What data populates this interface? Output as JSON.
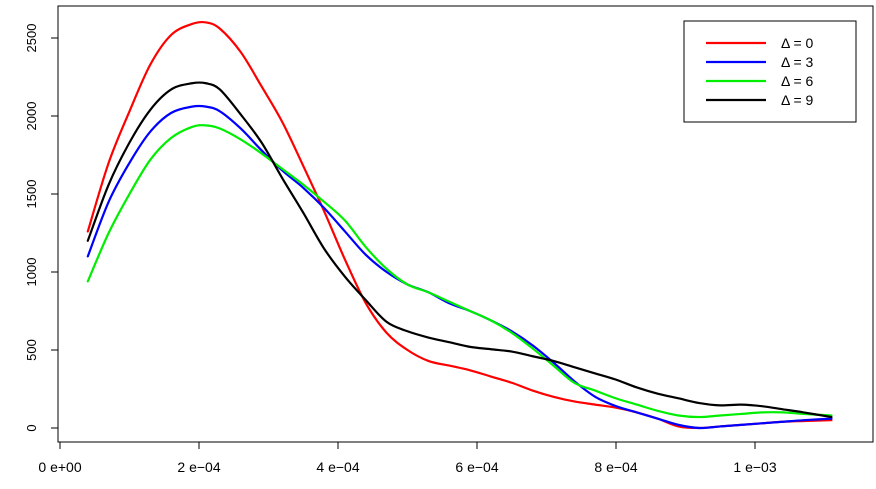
{
  "chart_data": {
    "type": "line",
    "title": "",
    "xlabel": "",
    "ylabel": "",
    "xlim": [
      0,
      0.00117
    ],
    "ylim": [
      0,
      2600
    ],
    "x_ticks": [
      {
        "value": 0,
        "label": "0  e+00"
      },
      {
        "value": 0.0002,
        "label": "2  e−04"
      },
      {
        "value": 0.0004,
        "label": "4  e−04"
      },
      {
        "value": 0.0006,
        "label": "6  e−04"
      },
      {
        "value": 0.0008,
        "label": "8  e−04"
      },
      {
        "value": 0.001,
        "label": "1  e−03"
      }
    ],
    "y_ticks": [
      {
        "value": 0,
        "label": "0"
      },
      {
        "value": 500,
        "label": "500"
      },
      {
        "value": 1000,
        "label": "1000"
      },
      {
        "value": 1500,
        "label": "1500"
      },
      {
        "value": 2000,
        "label": "2000"
      },
      {
        "value": 2500,
        "label": "2500"
      }
    ],
    "legend_position": "top-right",
    "series": [
      {
        "name": "Δ = 0",
        "color": "#ff0000",
        "x": [
          4e-05,
          7e-05,
          0.0001,
          0.00013,
          0.00016,
          0.00019,
          0.00021,
          0.00023,
          0.00026,
          0.00029,
          0.00032,
          0.00035,
          0.00038,
          0.00041,
          0.00044,
          0.00047,
          0.0005,
          0.00053,
          0.00056,
          0.00059,
          0.00062,
          0.00065,
          0.00068,
          0.00071,
          0.00074,
          0.00077,
          0.0008,
          0.00083,
          0.00086,
          0.00089,
          0.00092,
          0.00095,
          0.00098,
          0.00101,
          0.00104,
          0.00107,
          0.00111
        ],
        "y": [
          1260,
          1700,
          2030,
          2330,
          2520,
          2590,
          2600,
          2560,
          2410,
          2190,
          1960,
          1680,
          1390,
          1080,
          800,
          610,
          500,
          430,
          400,
          370,
          330,
          290,
          240,
          200,
          170,
          150,
          130,
          100,
          60,
          10,
          0,
          10,
          20,
          30,
          40,
          45,
          50
        ]
      },
      {
        "name": "Δ = 3",
        "color": "#0000ff",
        "x": [
          4e-05,
          7e-05,
          0.0001,
          0.00013,
          0.00016,
          0.00019,
          0.00021,
          0.00023,
          0.00026,
          0.00029,
          0.00032,
          0.00035,
          0.00038,
          0.00041,
          0.00044,
          0.00047,
          0.0005,
          0.00053,
          0.00056,
          0.00059,
          0.00062,
          0.00065,
          0.00068,
          0.00071,
          0.00074,
          0.00077,
          0.0008,
          0.00083,
          0.00086,
          0.00089,
          0.00092,
          0.00095,
          0.00098,
          0.00101,
          0.00104,
          0.00107,
          0.00111
        ],
        "y": [
          1100,
          1450,
          1700,
          1900,
          2020,
          2060,
          2060,
          2030,
          1920,
          1780,
          1650,
          1540,
          1410,
          1260,
          1110,
          1000,
          920,
          870,
          800,
          750,
          690,
          620,
          530,
          420,
          300,
          200,
          140,
          100,
          60,
          20,
          0,
          10,
          20,
          30,
          40,
          50,
          60
        ]
      },
      {
        "name": "Δ = 6",
        "color": "#00ee00",
        "x": [
          4e-05,
          7e-05,
          0.0001,
          0.00013,
          0.00016,
          0.00019,
          0.00021,
          0.00023,
          0.00026,
          0.00029,
          0.00032,
          0.00035,
          0.00038,
          0.00041,
          0.00044,
          0.00047,
          0.0005,
          0.00053,
          0.00056,
          0.00059,
          0.00062,
          0.00065,
          0.00068,
          0.00071,
          0.00074,
          0.00077,
          0.0008,
          0.00083,
          0.00086,
          0.00089,
          0.00092,
          0.00095,
          0.00098,
          0.00101,
          0.00104,
          0.00107,
          0.00111
        ],
        "y": [
          940,
          1250,
          1500,
          1720,
          1860,
          1930,
          1940,
          1920,
          1850,
          1760,
          1660,
          1560,
          1450,
          1330,
          1160,
          1020,
          920,
          870,
          810,
          750,
          690,
          610,
          510,
          400,
          290,
          240,
          190,
          150,
          110,
          80,
          70,
          80,
          90,
          100,
          100,
          90,
          80
        ]
      },
      {
        "name": "Δ = 9",
        "color": "#000000",
        "x": [
          4e-05,
          7e-05,
          0.0001,
          0.00013,
          0.00016,
          0.00019,
          0.00021,
          0.00023,
          0.00026,
          0.00029,
          0.00032,
          0.00035,
          0.00038,
          0.00041,
          0.00044,
          0.00047,
          0.0005,
          0.00053,
          0.00056,
          0.00059,
          0.00062,
          0.00065,
          0.00068,
          0.00071,
          0.00074,
          0.00077,
          0.0008,
          0.00083,
          0.00086,
          0.00089,
          0.00092,
          0.00095,
          0.00098,
          0.00101,
          0.00104,
          0.00107,
          0.00111
        ],
        "y": [
          1200,
          1560,
          1830,
          2040,
          2170,
          2210,
          2210,
          2170,
          2010,
          1830,
          1600,
          1380,
          1150,
          970,
          820,
          680,
          620,
          580,
          550,
          520,
          505,
          490,
          460,
          430,
          390,
          350,
          310,
          260,
          220,
          190,
          160,
          145,
          150,
          140,
          120,
          100,
          70
        ]
      }
    ]
  }
}
